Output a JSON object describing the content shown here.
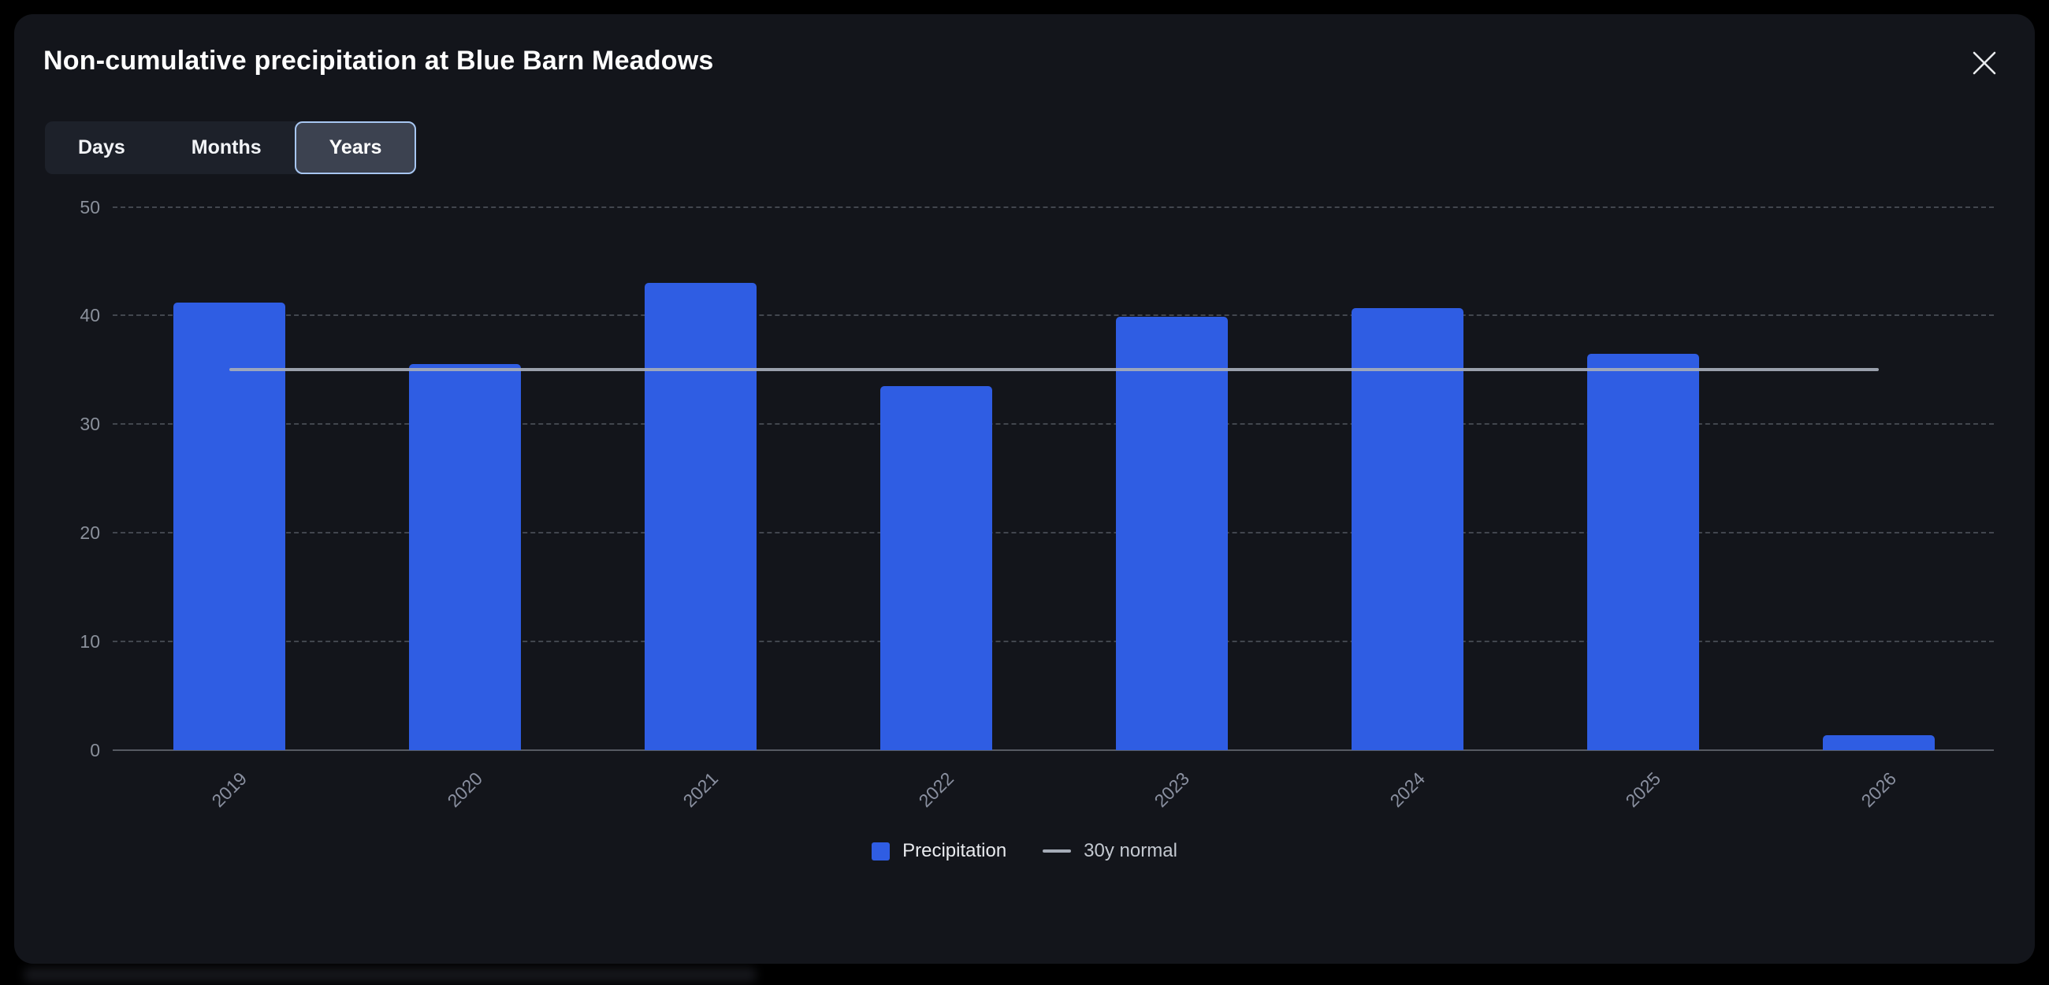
{
  "modal": {
    "title": "Non-cumulative precipitation at Blue Barn Meadows",
    "close_icon": "x-close-icon"
  },
  "tabs": {
    "items": [
      {
        "label": "Days",
        "selected": false
      },
      {
        "label": "Months",
        "selected": false
      },
      {
        "label": "Years",
        "selected": true
      }
    ],
    "selected_border_color": "#a7c6f1",
    "selected_bg_color": "#3c4250"
  },
  "chart_data": {
    "type": "bar",
    "title": "Non-cumulative precipitation at Blue Barn Meadows",
    "categories": [
      "2019",
      "2020",
      "2021",
      "2022",
      "2023",
      "2024",
      "2025",
      "2026"
    ],
    "series": [
      {
        "name": "Precipitation",
        "type": "bar",
        "color": "#2f5de3",
        "values": [
          41.2,
          35.5,
          43,
          33.5,
          39.9,
          40.7,
          36.5,
          1.4
        ]
      },
      {
        "name": "30y normal",
        "type": "line",
        "color": "#a6adb8",
        "value": 35
      }
    ],
    "xlabel": "",
    "ylabel": "",
    "ylim": [
      0,
      50
    ],
    "yticks": [
      0,
      10,
      20,
      30,
      40,
      50
    ],
    "grid": "horizontal-dashed",
    "legend_position": "bottom",
    "x_label_rotation_deg": -45
  },
  "legend": {
    "items": [
      {
        "label": "Precipitation",
        "swatch": "square",
        "color": "#2f5de3"
      },
      {
        "label": "30y normal",
        "swatch": "line",
        "color": "#a6adb8"
      }
    ]
  },
  "colors": {
    "page_bg": "#000000",
    "modal_bg": "#13151b",
    "bar_blue": "#2f5de3",
    "normal_line_gray": "#a6adb8",
    "axis_text": "#8a909b",
    "gridline": "#42464e",
    "title_text": "#ffffff"
  }
}
